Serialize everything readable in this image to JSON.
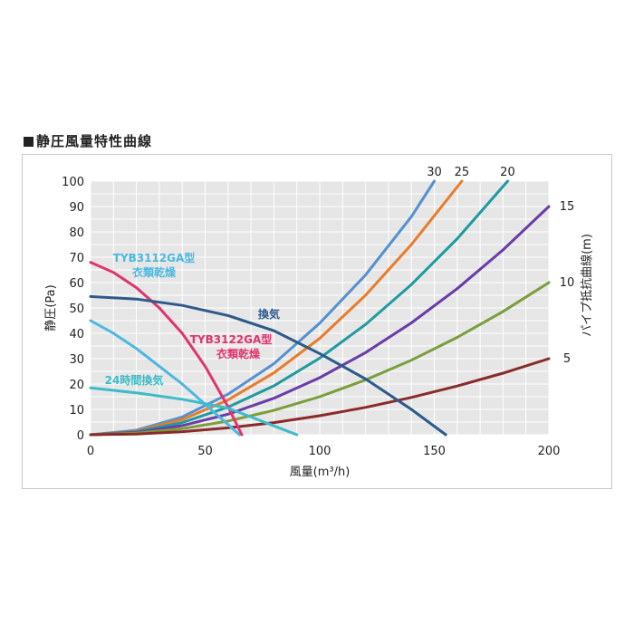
{
  "heading": "静圧風量特性曲線",
  "chart_data": {
    "type": "line",
    "title": "静圧風量特性曲線",
    "xlabel": "風量(m³/h)",
    "ylabel": "静圧(Pa)",
    "y2label": "パイプ抵抗曲線(m)",
    "xlim": [
      0,
      200
    ],
    "ylim": [
      0,
      100
    ],
    "xticks": [
      "0",
      "50",
      "100",
      "150",
      "200"
    ],
    "yticks": [
      "0",
      "10",
      "20",
      "30",
      "40",
      "50",
      "60",
      "70",
      "80",
      "90",
      "100"
    ],
    "grid": true,
    "fan_curves": [
      {
        "name": "TYB3112GA型\n衣類乾燥",
        "color": "#4ab8e0",
        "x": [
          0,
          10,
          20,
          30,
          40,
          50,
          55,
          60,
          65
        ],
        "y": [
          45,
          40,
          34,
          27,
          20,
          12,
          8,
          4,
          0
        ]
      },
      {
        "name": "TYB3122GA型\n衣類乾燥",
        "color": "#e0346e",
        "x": [
          0,
          10,
          20,
          30,
          40,
          50,
          55,
          60,
          66
        ],
        "y": [
          68,
          64,
          58,
          50,
          40,
          27,
          19,
          11,
          0
        ]
      },
      {
        "name": "換気",
        "color": "#2d5a8a",
        "x": [
          0,
          20,
          40,
          60,
          80,
          100,
          120,
          140,
          155
        ],
        "y": [
          54.5,
          53.5,
          51,
          47,
          41,
          32,
          22,
          10,
          0
        ]
      },
      {
        "name": "24時間換気",
        "color": "#3cbcc8",
        "x": [
          0,
          20,
          40,
          60,
          70,
          80,
          90
        ],
        "y": [
          18.5,
          16.5,
          14,
          10.5,
          7,
          3.5,
          0
        ]
      }
    ],
    "pipe_curves": [
      {
        "name": "30",
        "color": "#5590d0",
        "x": [
          0,
          20,
          40,
          60,
          80,
          100,
          120,
          140,
          150
        ],
        "y": [
          0,
          1.8,
          7,
          16,
          28,
          44,
          63,
          86,
          100
        ]
      },
      {
        "name": "25",
        "color": "#e87c2a",
        "x": [
          0,
          20,
          40,
          60,
          80,
          100,
          120,
          140,
          162
        ],
        "y": [
          0,
          1.5,
          6,
          13.7,
          24.4,
          38,
          55,
          75,
          100
        ]
      },
      {
        "name": "20",
        "color": "#1e9aa0",
        "x": [
          0,
          20,
          40,
          60,
          80,
          100,
          120,
          140,
          160,
          182
        ],
        "y": [
          0,
          1.2,
          4.8,
          10.9,
          19.3,
          30.2,
          43.5,
          59.2,
          77.3,
          100
        ]
      },
      {
        "name": "15",
        "color": "#6a3ca8",
        "x": [
          0,
          20,
          40,
          60,
          80,
          100,
          120,
          140,
          160,
          180,
          200
        ],
        "y": [
          0,
          0.9,
          3.6,
          8.1,
          14.4,
          22.5,
          32.4,
          44.1,
          57.6,
          72.9,
          90
        ]
      },
      {
        "name": "10",
        "color": "#7a9e3a",
        "x": [
          0,
          20,
          40,
          60,
          80,
          100,
          120,
          140,
          160,
          180,
          200
        ],
        "y": [
          0,
          0.6,
          2.4,
          5.4,
          9.6,
          15,
          21.6,
          29.4,
          38.4,
          48.6,
          60
        ]
      },
      {
        "name": "5",
        "color": "#8b2a2a",
        "x": [
          0,
          20,
          40,
          60,
          80,
          100,
          120,
          140,
          160,
          180,
          200
        ],
        "y": [
          0,
          0.3,
          1.2,
          2.7,
          4.8,
          7.5,
          10.8,
          14.7,
          19.2,
          24.3,
          30
        ]
      }
    ],
    "annotations": [
      {
        "text": "TYB3112GA型",
        "color": "#4ab8e0"
      },
      {
        "text": "衣類乾燥",
        "color": "#4ab8e0"
      },
      {
        "text": "TYB3122GA型",
        "color": "#e0346e"
      },
      {
        "text": "衣類乾燥",
        "color": "#e0346e"
      },
      {
        "text": "換気",
        "color": "#2d5a8a"
      },
      {
        "text": "24時間換気",
        "color": "#3cbcc8"
      }
    ]
  }
}
